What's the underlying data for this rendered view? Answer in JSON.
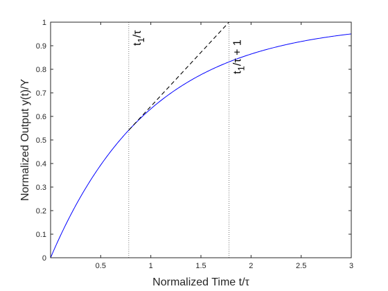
{
  "chart_data": {
    "type": "line",
    "title": "",
    "xlabel": "Normalized Time t/τ",
    "ylabel": "Normalized Output y(t)/Y",
    "xlim": [
      0,
      3
    ],
    "ylim": [
      0,
      1
    ],
    "grid": false,
    "x_ticks": [
      0.5,
      1,
      1.5,
      2,
      2.5,
      3
    ],
    "x_tick_labels": [
      "0.5",
      "1",
      "1.5",
      "2",
      "2.5",
      "3"
    ],
    "y_ticks": [
      0,
      0.1,
      0.2,
      0.3,
      0.4,
      0.5,
      0.6,
      0.7,
      0.8,
      0.9,
      1
    ],
    "y_tick_labels": [
      "0",
      "0.1",
      "0.2",
      "0.3",
      "0.4",
      "0.5",
      "0.6",
      "0.7",
      "0.8",
      "0.9",
      "1"
    ],
    "series": [
      {
        "function": "1 - exp(-x)",
        "color": "#0000ff",
        "style": "solid",
        "x": [
          0,
          0.1,
          0.2,
          0.3,
          0.4,
          0.5,
          0.6,
          0.7,
          0.8,
          0.9,
          1.0,
          1.2,
          1.4,
          1.6,
          1.8,
          2.0,
          2.2,
          2.4,
          2.6,
          2.8,
          3.0
        ],
        "y": [
          0,
          0.095,
          0.181,
          0.259,
          0.33,
          0.393,
          0.451,
          0.503,
          0.551,
          0.593,
          0.632,
          0.699,
          0.753,
          0.798,
          0.835,
          0.865,
          0.889,
          0.909,
          0.926,
          0.939,
          0.95
        ]
      },
      {
        "function": "tangent line at t1/τ",
        "color": "#000000",
        "style": "dashed",
        "x": [
          0.78,
          1.78
        ],
        "y": [
          0.5416,
          1.0
        ]
      }
    ],
    "vlines": [
      {
        "x": 0.78,
        "color": "#555555",
        "style": "dotted"
      },
      {
        "x": 1.78,
        "color": "#555555",
        "style": "dotted"
      }
    ],
    "annotations": [
      {
        "text_main": "t",
        "text_sub": "1",
        "text_rest": "/τ",
        "x": 0.78,
        "y": 0.9
      },
      {
        "text_main": "t",
        "text_sub": "1",
        "text_rest": "/τ + 1",
        "x": 1.78,
        "y": 0.78
      }
    ]
  }
}
